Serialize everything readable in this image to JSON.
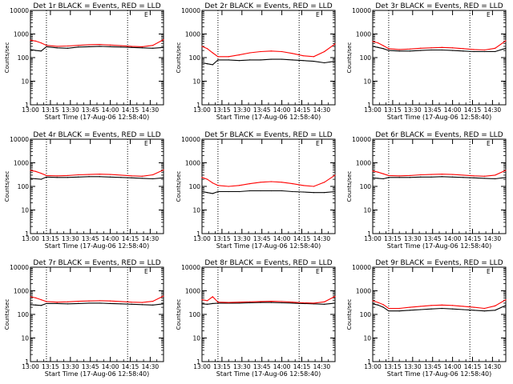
{
  "chart_data": [
    {
      "type": "line",
      "title": "Det 1r BLACK = Events, RED = LLD",
      "xlabel": "Start Time (17-Aug-06 12:58:40)",
      "ylabel": "Counts/sec",
      "yscale": "log",
      "ylim": [
        1,
        10000
      ],
      "xlim": [
        "13:00",
        "14:40"
      ],
      "x_ticks": [
        "13:00",
        "13:15",
        "13:30",
        "13:45",
        "14:00",
        "14:15",
        "14:30"
      ],
      "y_ticks": [
        "1",
        "10",
        "100",
        "1000",
        "10000"
      ],
      "vlines": [
        "13:12",
        "14:13"
      ],
      "corner_mark": "E",
      "x": [
        "13:00",
        "13:04",
        "13:08",
        "13:12",
        "13:20",
        "13:28",
        "13:36",
        "13:44",
        "13:52",
        "14:00",
        "14:08",
        "14:16",
        "14:24",
        "14:32",
        "14:40"
      ],
      "series": [
        {
          "name": "Events",
          "color": "#000000",
          "values": [
            220,
            200,
            190,
            290,
            260,
            250,
            280,
            290,
            300,
            290,
            280,
            270,
            260,
            250,
            270
          ]
        },
        {
          "name": "LLD",
          "color": "#ff0000",
          "values": [
            550,
            500,
            420,
            330,
            300,
            310,
            330,
            350,
            360,
            340,
            320,
            300,
            290,
            330,
            580
          ]
        }
      ]
    },
    {
      "type": "line",
      "title": "Det 2r BLACK = Events, RED = LLD",
      "xlabel": "Start Time (17-Aug-06 12:58:40)",
      "ylabel": "Counts/sec",
      "yscale": "log",
      "ylim": [
        1,
        10000
      ],
      "xlim": [
        "13:00",
        "14:40"
      ],
      "x_ticks": [
        "13:00",
        "13:15",
        "13:30",
        "13:45",
        "14:00",
        "14:15",
        "14:30"
      ],
      "y_ticks": [
        "1",
        "10",
        "100",
        "1000",
        "10000"
      ],
      "vlines": [
        "13:12",
        "14:13"
      ],
      "corner_mark": "E",
      "x": [
        "13:00",
        "13:04",
        "13:08",
        "13:12",
        "13:20",
        "13:28",
        "13:36",
        "13:44",
        "13:52",
        "14:00",
        "14:08",
        "14:16",
        "14:24",
        "14:32",
        "14:40"
      ],
      "series": [
        {
          "name": "Events",
          "color": "#000000",
          "values": [
            60,
            55,
            50,
            80,
            80,
            75,
            80,
            80,
            85,
            85,
            80,
            75,
            70,
            60,
            70
          ]
        },
        {
          "name": "LLD",
          "color": "#ff0000",
          "values": [
            300,
            240,
            160,
            110,
            110,
            130,
            160,
            180,
            190,
            180,
            150,
            120,
            110,
            180,
            380
          ]
        }
      ]
    },
    {
      "type": "line",
      "title": "Det 3r BLACK = Events, RED = LLD",
      "xlabel": "Start Time (17-Aug-06 12:58:40)",
      "ylabel": "Counts/sec",
      "yscale": "log",
      "ylim": [
        1,
        10000
      ],
      "xlim": [
        "13:00",
        "14:40"
      ],
      "x_ticks": [
        "13:00",
        "13:15",
        "13:30",
        "13:45",
        "14:00",
        "14:15",
        "14:30"
      ],
      "y_ticks": [
        "1",
        "10",
        "100",
        "1000",
        "10000"
      ],
      "vlines": [
        "13:12",
        "14:13"
      ],
      "corner_mark": "E",
      "x": [
        "13:00",
        "13:04",
        "13:08",
        "13:12",
        "13:20",
        "13:28",
        "13:36",
        "13:44",
        "13:52",
        "14:00",
        "14:08",
        "14:16",
        "14:24",
        "14:32",
        "14:40"
      ],
      "series": [
        {
          "name": "Events",
          "color": "#000000",
          "values": [
            300,
            270,
            240,
            200,
            190,
            190,
            200,
            210,
            210,
            200,
            190,
            180,
            180,
            180,
            250
          ]
        },
        {
          "name": "LLD",
          "color": "#ff0000",
          "values": [
            480,
            420,
            320,
            240,
            220,
            230,
            250,
            260,
            270,
            260,
            240,
            220,
            210,
            250,
            520
          ]
        }
      ]
    },
    {
      "type": "line",
      "title": "Det 4r BLACK = Events, RED = LLD",
      "xlabel": "Start Time (17-Aug-06 12:58:40)",
      "ylabel": "Counts/sec",
      "yscale": "log",
      "ylim": [
        1,
        10000
      ],
      "xlim": [
        "13:00",
        "14:40"
      ],
      "x_ticks": [
        "13:00",
        "13:15",
        "13:30",
        "13:45",
        "14:00",
        "14:15",
        "14:30"
      ],
      "y_ticks": [
        "1",
        "10",
        "100",
        "1000",
        "10000"
      ],
      "vlines": [
        "13:12",
        "14:13"
      ],
      "corner_mark": "E",
      "x": [
        "13:00",
        "13:04",
        "13:08",
        "13:12",
        "13:20",
        "13:28",
        "13:36",
        "13:44",
        "13:52",
        "14:00",
        "14:08",
        "14:16",
        "14:24",
        "14:32",
        "14:40"
      ],
      "series": [
        {
          "name": "Events",
          "color": "#000000",
          "values": [
            220,
            210,
            200,
            250,
            240,
            240,
            250,
            260,
            260,
            250,
            240,
            230,
            220,
            210,
            230
          ]
        },
        {
          "name": "LLD",
          "color": "#ff0000",
          "values": [
            480,
            430,
            360,
            290,
            280,
            290,
            310,
            320,
            330,
            320,
            300,
            280,
            270,
            310,
            500
          ]
        }
      ]
    },
    {
      "type": "line",
      "title": "Det 5r BLACK = Events, RED = LLD",
      "xlabel": "Start Time (17-Aug-06 12:58:40)",
      "ylabel": "Counts/sec",
      "yscale": "log",
      "ylim": [
        1,
        10000
      ],
      "xlim": [
        "13:00",
        "14:40"
      ],
      "x_ticks": [
        "13:00",
        "13:15",
        "13:30",
        "13:45",
        "14:00",
        "14:15",
        "14:30"
      ],
      "y_ticks": [
        "1",
        "10",
        "100",
        "1000",
        "10000"
      ],
      "vlines": [
        "13:12",
        "14:13"
      ],
      "corner_mark": "E",
      "x": [
        "13:00",
        "13:04",
        "13:08",
        "13:12",
        "13:20",
        "13:28",
        "13:36",
        "13:44",
        "13:52",
        "14:00",
        "14:08",
        "14:16",
        "14:24",
        "14:32",
        "14:40"
      ],
      "series": [
        {
          "name": "Events",
          "color": "#000000",
          "values": [
            60,
            55,
            50,
            60,
            60,
            60,
            65,
            65,
            65,
            65,
            60,
            58,
            55,
            55,
            60
          ]
        },
        {
          "name": "LLD",
          "color": "#ff0000",
          "values": [
            240,
            200,
            140,
            110,
            100,
            110,
            130,
            150,
            160,
            150,
            130,
            110,
            100,
            150,
            300
          ]
        }
      ]
    },
    {
      "type": "line",
      "title": "Det 6r BLACK = Events, RED = LLD",
      "xlabel": "Start Time (17-Aug-06 12:58:40)",
      "ylabel": "Counts/sec",
      "yscale": "log",
      "ylim": [
        1,
        10000
      ],
      "xlim": [
        "13:00",
        "14:40"
      ],
      "x_ticks": [
        "13:00",
        "13:15",
        "13:30",
        "13:45",
        "14:00",
        "14:15",
        "14:30"
      ],
      "y_ticks": [
        "1",
        "10",
        "100",
        "1000",
        "10000"
      ],
      "vlines": [
        "13:12",
        "14:13"
      ],
      "corner_mark": "E",
      "x": [
        "13:00",
        "13:04",
        "13:08",
        "13:12",
        "13:20",
        "13:28",
        "13:36",
        "13:44",
        "13:52",
        "14:00",
        "14:08",
        "14:16",
        "14:24",
        "14:32",
        "14:40"
      ],
      "series": [
        {
          "name": "Events",
          "color": "#000000",
          "values": [
            230,
            220,
            210,
            240,
            240,
            240,
            250,
            250,
            260,
            250,
            240,
            230,
            220,
            210,
            240
          ]
        },
        {
          "name": "LLD",
          "color": "#ff0000",
          "values": [
            450,
            400,
            340,
            290,
            280,
            290,
            310,
            320,
            330,
            320,
            300,
            280,
            270,
            300,
            480
          ]
        }
      ]
    },
    {
      "type": "line",
      "title": "Det 7r BLACK = Events, RED = LLD",
      "xlabel": "Start Time (17-Aug-06 12:58:40)",
      "ylabel": "Counts/sec",
      "yscale": "log",
      "ylim": [
        1,
        10000
      ],
      "xlim": [
        "13:00",
        "14:40"
      ],
      "x_ticks": [
        "13:00",
        "13:15",
        "13:30",
        "13:45",
        "14:00",
        "14:15",
        "14:30"
      ],
      "y_ticks": [
        "1",
        "10",
        "100",
        "1000",
        "10000"
      ],
      "vlines": [
        "13:12",
        "14:13"
      ],
      "corner_mark": "E",
      "x": [
        "13:00",
        "13:04",
        "13:08",
        "13:12",
        "13:20",
        "13:28",
        "13:36",
        "13:44",
        "13:52",
        "14:00",
        "14:08",
        "14:16",
        "14:24",
        "14:32",
        "14:40"
      ],
      "series": [
        {
          "name": "Events",
          "color": "#000000",
          "values": [
            260,
            250,
            240,
            290,
            290,
            280,
            290,
            300,
            300,
            290,
            280,
            270,
            260,
            250,
            280
          ]
        },
        {
          "name": "LLD",
          "color": "#ff0000",
          "values": [
            560,
            500,
            420,
            350,
            330,
            340,
            360,
            370,
            380,
            370,
            350,
            330,
            320,
            360,
            600
          ]
        }
      ]
    },
    {
      "type": "line",
      "title": "Det 8r BLACK = Events, RED = LLD",
      "xlabel": "Start Time (17-Aug-06 12:58:40)",
      "ylabel": "Counts/sec",
      "yscale": "log",
      "ylim": [
        1,
        10000
      ],
      "xlim": [
        "13:00",
        "14:40"
      ],
      "x_ticks": [
        "13:00",
        "13:15",
        "13:30",
        "13:45",
        "14:00",
        "14:15",
        "14:30"
      ],
      "y_ticks": [
        "1",
        "10",
        "100",
        "1000",
        "10000"
      ],
      "vlines": [
        "13:12",
        "14:13"
      ],
      "corner_mark": "E",
      "x": [
        "13:00",
        "13:04",
        "13:08",
        "13:12",
        "13:20",
        "13:28",
        "13:36",
        "13:44",
        "13:52",
        "14:00",
        "14:08",
        "14:16",
        "14:24",
        "14:32",
        "14:40"
      ],
      "series": [
        {
          "name": "Events",
          "color": "#000000",
          "values": [
            280,
            270,
            290,
            300,
            300,
            300,
            310,
            320,
            320,
            310,
            300,
            290,
            280,
            270,
            300
          ]
        },
        {
          "name": "LLD",
          "color": "#ff0000",
          "values": [
            420,
            380,
            560,
            330,
            320,
            330,
            340,
            350,
            360,
            350,
            330,
            310,
            300,
            340,
            580
          ]
        }
      ]
    },
    {
      "type": "line",
      "title": "Det 9r BLACK = Events, RED = LLD",
      "xlabel": "Start Time (17-Aug-06 12:58:40)",
      "ylabel": "Counts/sec",
      "yscale": "log",
      "ylim": [
        1,
        10000
      ],
      "xlim": [
        "13:00",
        "14:40"
      ],
      "x_ticks": [
        "13:00",
        "13:15",
        "13:30",
        "13:45",
        "14:00",
        "14:15",
        "14:30"
      ],
      "y_ticks": [
        "1",
        "10",
        "100",
        "1000",
        "10000"
      ],
      "vlines": [
        "13:12",
        "14:13"
      ],
      "corner_mark": "E",
      "x": [
        "13:00",
        "13:04",
        "13:08",
        "13:12",
        "13:20",
        "13:28",
        "13:36",
        "13:44",
        "13:52",
        "14:00",
        "14:08",
        "14:16",
        "14:24",
        "14:32",
        "14:40"
      ],
      "series": [
        {
          "name": "Events",
          "color": "#000000",
          "values": [
            280,
            250,
            200,
            140,
            140,
            150,
            160,
            170,
            180,
            170,
            160,
            150,
            140,
            150,
            240
          ]
        },
        {
          "name": "LLD",
          "color": "#ff0000",
          "values": [
            380,
            320,
            260,
            180,
            180,
            200,
            220,
            240,
            250,
            240,
            220,
            200,
            180,
            230,
            420
          ]
        }
      ]
    }
  ]
}
